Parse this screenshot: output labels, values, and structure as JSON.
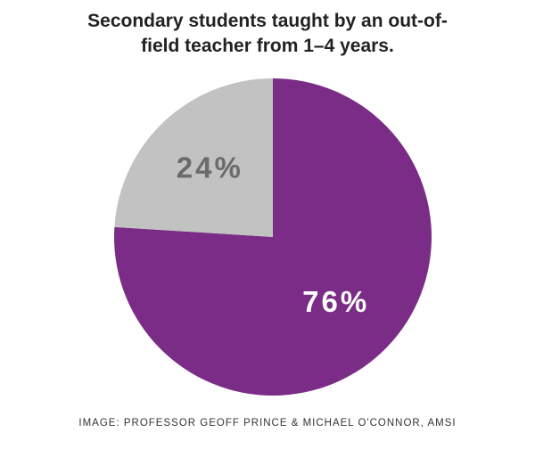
{
  "chart_data": {
    "type": "pie",
    "title": "Secondary students taught by an out-of-field teacher from 1–4 years.",
    "categories": [
      null,
      null
    ],
    "values": [
      76,
      24
    ],
    "value_labels": [
      "76%",
      "24%"
    ],
    "colors": [
      "#7a2c86",
      "#c2c2c2"
    ],
    "label_colors": [
      "#ffffff",
      "#6b6b6b"
    ],
    "caption": "IMAGE: PROFESSOR GEOFF PRINCE & MICHAEL O'CONNOR, AMSI"
  }
}
